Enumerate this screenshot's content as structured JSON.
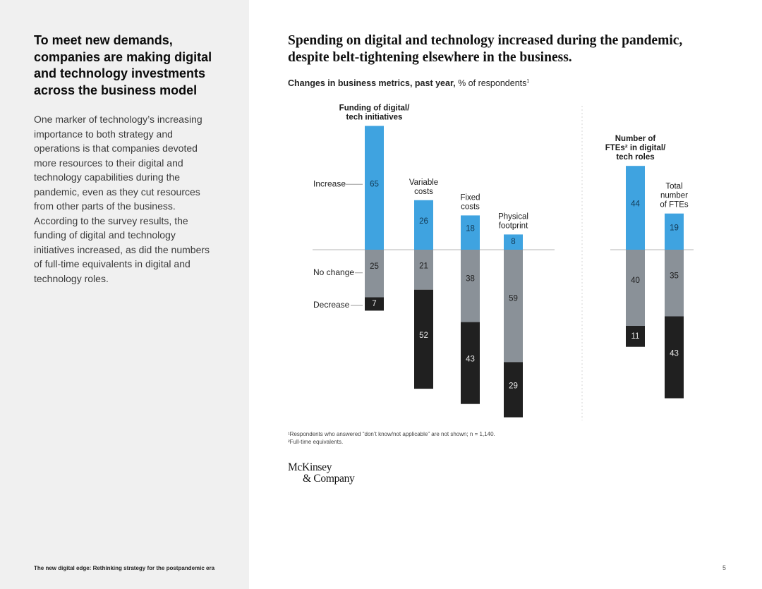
{
  "sidebar": {
    "heading": "To meet new demands, companies are making digital and technology investments across the business model",
    "body": "One marker of technology’s increasing importance to both strategy and operations is that companies devoted more resources to their digital and technology capabilities during the pandemic, even as they cut resources from other parts of the business. According to the survey results, the funding of digital and technology initiatives increased, as did the numbers of full-time equivalents in digital and technology roles."
  },
  "main": {
    "title": "Spending on digital and technology increased during the pandemic, despite belt-tightening elsewhere in the business.",
    "subtitle_bold": "Changes in business metrics, past year,",
    "subtitle_rest": " % of respondents",
    "subtitle_sup": "1"
  },
  "notes": {
    "note1": "¹Respondents who answered “don’t know/not applicable” are not shown; n = 1,140.",
    "note2": "²Full-time equivalents."
  },
  "logo": {
    "line1": "McKinsey",
    "line2": "& Company"
  },
  "footer": {
    "left": "The new digital edge: Rethinking strategy for the postpandemic era",
    "page": "5"
  },
  "colors": {
    "increase": "#3fa3e0",
    "no_change": "#8a9198",
    "decrease": "#202020",
    "axis": "#b5b5b5",
    "divider": "#d5d5d5"
  },
  "chart_data": {
    "type": "bar",
    "subtype": "diverging-stacked",
    "title": "Changes in business metrics, past year",
    "ylabel": "% of respondents",
    "legend": [
      "Increase",
      "No change",
      "Decrease"
    ],
    "series": [
      {
        "name": "Increase",
        "values": [
          65,
          26,
          18,
          8,
          44,
          19
        ]
      },
      {
        "name": "No change",
        "values": [
          25,
          21,
          38,
          59,
          40,
          35
        ]
      },
      {
        "name": "Decrease",
        "values": [
          7,
          52,
          43,
          29,
          11,
          43
        ]
      }
    ],
    "categories": [
      {
        "label_lines": [
          "Funding of digital/",
          "tech initiatives"
        ],
        "bold": true,
        "group": 1
      },
      {
        "label_lines": [
          "Variable",
          "costs"
        ],
        "bold": false,
        "group": 1
      },
      {
        "label_lines": [
          "Fixed",
          "costs"
        ],
        "bold": false,
        "group": 1
      },
      {
        "label_lines": [
          "Physical",
          "footprint"
        ],
        "bold": false,
        "group": 1
      },
      {
        "label_lines": [
          "Number of",
          "FTEs² in digital/",
          "tech roles"
        ],
        "bold": true,
        "group": 2
      },
      {
        "label_lines": [
          "Total",
          "number",
          "of FTEs"
        ],
        "bold": false,
        "group": 2
      }
    ]
  }
}
